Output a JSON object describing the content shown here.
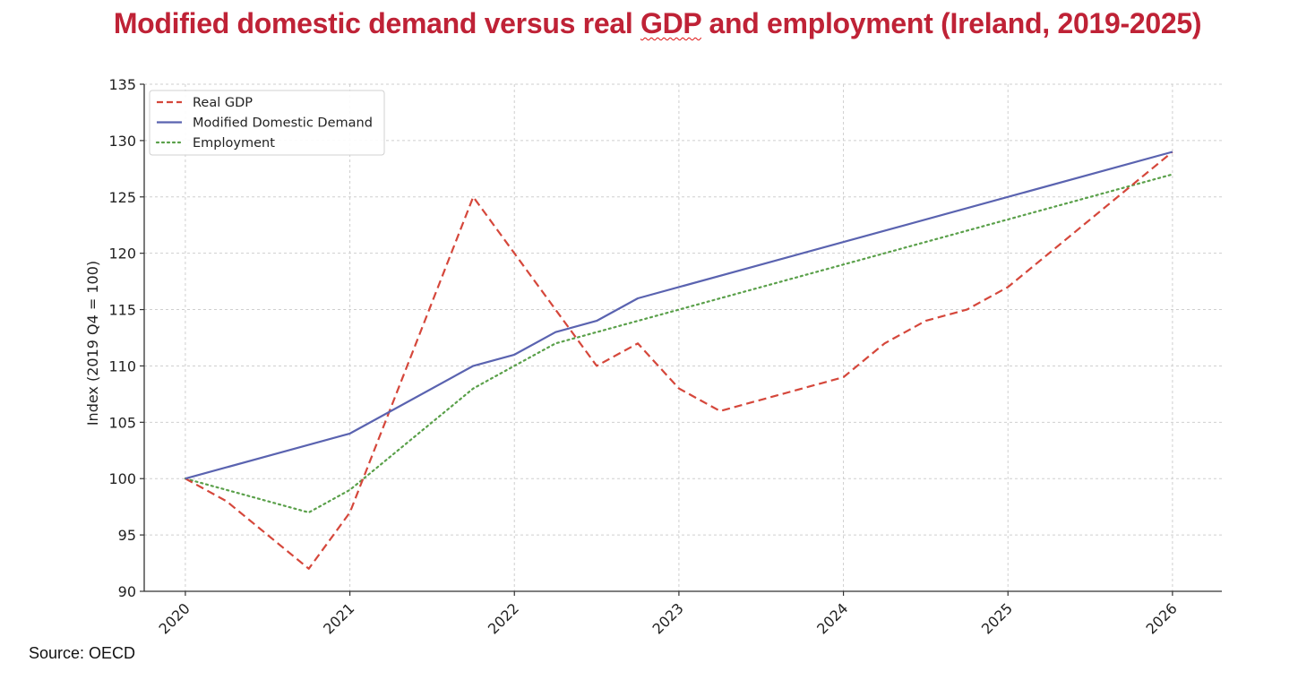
{
  "title_prefix": "Modified domestic demand versus real ",
  "title_gdp": "GDP",
  "title_suffix": " and employment (Ireland, 2019-2025)",
  "source": "Source: OECD",
  "colors": {
    "title": "#bf2236",
    "real_gdp": "#d5473b",
    "modified_domestic_demand": "#5a63b0",
    "employment": "#5aa04a"
  },
  "chart_data": {
    "type": "line",
    "ylabel": "Index (2019 Q4 = 100)",
    "xlabel": "",
    "x_tick_labels": [
      "2020",
      "2021",
      "2022",
      "2023",
      "2024",
      "2025",
      "2026"
    ],
    "x_ticks": [
      2020,
      2021,
      2022,
      2023,
      2024,
      2025,
      2026
    ],
    "xlim": [
      2019.75,
      2026.3
    ],
    "ylim": [
      90,
      135
    ],
    "y_ticks": [
      90,
      95,
      100,
      105,
      110,
      115,
      120,
      125,
      130,
      135
    ],
    "grid": true,
    "legend_position": "top-left",
    "series": [
      {
        "name": "Real GDP",
        "style": "dashed",
        "x": [
          2020,
          2020.25,
          2020.75,
          2021,
          2021.75,
          2022,
          2022.5,
          2022.75,
          2023,
          2023.25,
          2024,
          2024.25,
          2024.5,
          2024.75,
          2025,
          2026
        ],
        "y": [
          100,
          98,
          92,
          97,
          125,
          120,
          110,
          112,
          108,
          106,
          109,
          112,
          114,
          115,
          117,
          129
        ]
      },
      {
        "name": "Modified Domestic Demand",
        "style": "solid",
        "x": [
          2020,
          2021,
          2021.75,
          2022,
          2022.25,
          2022.5,
          2022.75,
          2026
        ],
        "y": [
          100,
          104,
          110,
          111,
          113,
          114,
          116,
          129
        ]
      },
      {
        "name": "Employment",
        "style": "dotted",
        "x": [
          2020,
          2020.75,
          2021,
          2021.75,
          2022,
          2022.25,
          2026
        ],
        "y": [
          100,
          97,
          99,
          108,
          110,
          112,
          127
        ]
      }
    ]
  }
}
